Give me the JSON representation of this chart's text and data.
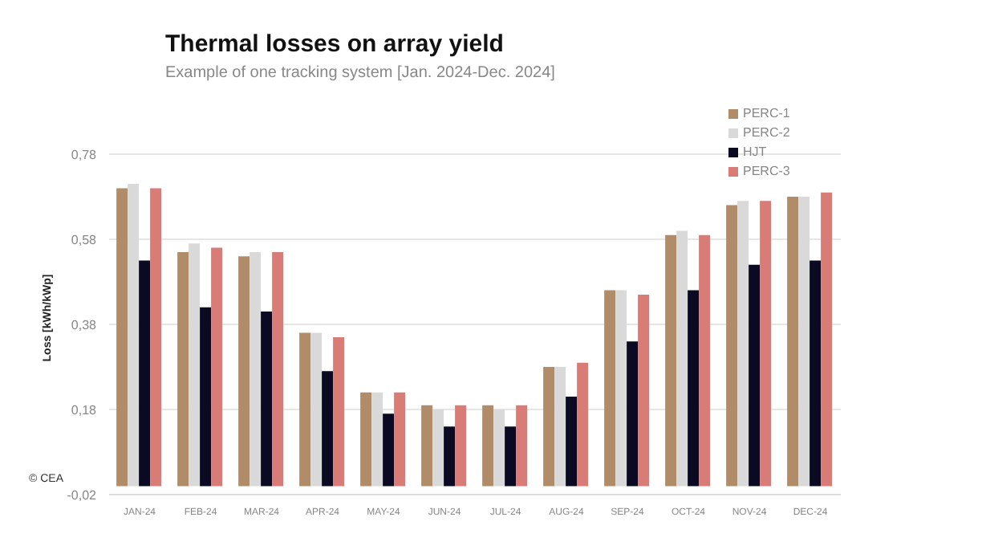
{
  "chart_data": {
    "type": "bar",
    "title": "Thermal losses on array yield",
    "subtitle": "Example of one tracking system [Jan. 2024-Dec. 2024]",
    "ylabel": "Loss [kWh/kWp]",
    "categories": [
      "JAN-24",
      "FEB-24",
      "MAR-24",
      "APR-24",
      "MAY-24",
      "JUN-24",
      "JUL-24",
      "AUG-24",
      "SEP-24",
      "OCT-24",
      "NOV-24",
      "DEC-24"
    ],
    "series": [
      {
        "name": "PERC-1",
        "color": "#b08c68",
        "values": [
          0.7,
          0.55,
          0.54,
          0.36,
          0.22,
          0.19,
          0.19,
          0.28,
          0.46,
          0.59,
          0.66,
          0.68
        ]
      },
      {
        "name": "PERC-2",
        "color": "#d9d9d9",
        "values": [
          0.71,
          0.57,
          0.55,
          0.36,
          0.22,
          0.18,
          0.18,
          0.28,
          0.46,
          0.6,
          0.67,
          0.68
        ]
      },
      {
        "name": "HJT",
        "color": "#0a0a23",
        "values": [
          0.53,
          0.42,
          0.41,
          0.27,
          0.17,
          0.14,
          0.14,
          0.21,
          0.34,
          0.46,
          0.52,
          0.53
        ]
      },
      {
        "name": "PERC-3",
        "color": "#d97b76",
        "values": [
          0.7,
          0.56,
          0.55,
          0.35,
          0.22,
          0.19,
          0.19,
          0.29,
          0.45,
          0.59,
          0.67,
          0.69
        ]
      }
    ],
    "ylim": [
      -0.02,
      0.78
    ],
    "yticks": [
      {
        "value": -0.02,
        "label": "-0,02"
      },
      {
        "value": 0.18,
        "label": "0,18"
      },
      {
        "value": 0.38,
        "label": "0,38"
      },
      {
        "value": 0.58,
        "label": "0,58"
      },
      {
        "value": 0.78,
        "label": "0,78"
      }
    ],
    "grid": "y",
    "legend": "top right",
    "annotations": [
      "© CEA"
    ]
  }
}
